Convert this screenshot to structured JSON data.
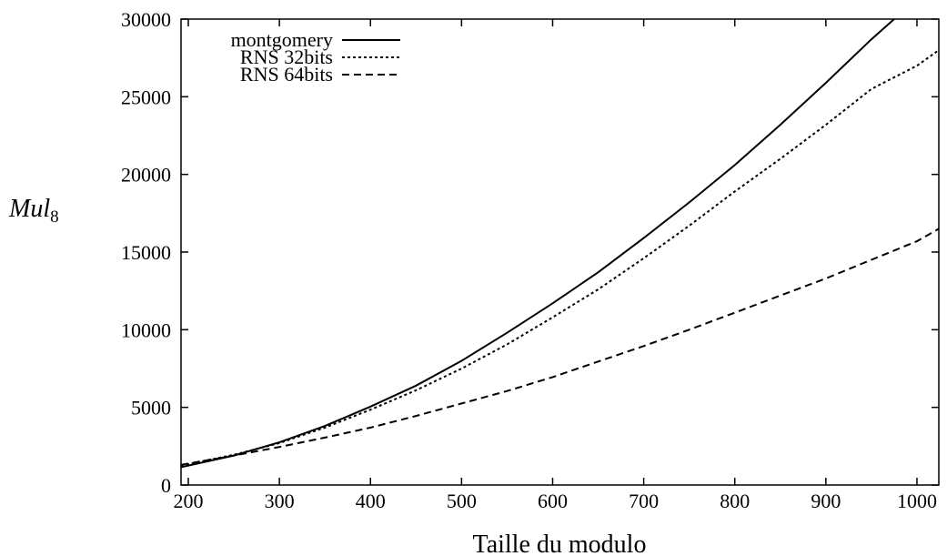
{
  "chart_data": {
    "type": "line",
    "xlabel": "Taille du modulo",
    "ylabel": {
      "main": "Mul",
      "sub": "8"
    },
    "xlim": [
      192,
      1024
    ],
    "ylim": [
      0,
      30000
    ],
    "xticks": [
      200,
      300,
      400,
      500,
      600,
      700,
      800,
      900,
      1000
    ],
    "yticks": [
      0,
      5000,
      10000,
      15000,
      20000,
      25000,
      30000
    ],
    "grid": false,
    "legend_position": "top-left",
    "series": [
      {
        "name": "montgomery",
        "style": "solid",
        "x": [
          192,
          250,
          300,
          350,
          400,
          450,
          500,
          550,
          600,
          650,
          700,
          750,
          800,
          850,
          900,
          950,
          975
        ],
        "y": [
          1150,
          1900,
          2750,
          3800,
          5050,
          6400,
          8000,
          9800,
          11700,
          13700,
          15900,
          18200,
          20600,
          23200,
          25900,
          28700,
          30000
        ]
      },
      {
        "name": "RNS 32bits",
        "style": "dotted",
        "x": [
          192,
          250,
          300,
          350,
          400,
          450,
          500,
          550,
          600,
          650,
          700,
          750,
          800,
          850,
          900,
          950,
          1000,
          1024
        ],
        "y": [
          1250,
          1950,
          2700,
          3700,
          4850,
          6100,
          7500,
          9050,
          10800,
          12600,
          14600,
          16700,
          18900,
          21000,
          23200,
          25500,
          27000,
          28000
        ]
      },
      {
        "name": "RNS 64bits",
        "style": "dashed",
        "x": [
          192,
          250,
          300,
          350,
          400,
          450,
          500,
          550,
          600,
          650,
          700,
          750,
          800,
          850,
          900,
          950,
          1000,
          1024
        ],
        "y": [
          1300,
          1900,
          2450,
          3050,
          3700,
          4450,
          5250,
          6050,
          6950,
          7950,
          8950,
          10000,
          11100,
          12200,
          13300,
          14500,
          15700,
          16500
        ]
      }
    ]
  }
}
